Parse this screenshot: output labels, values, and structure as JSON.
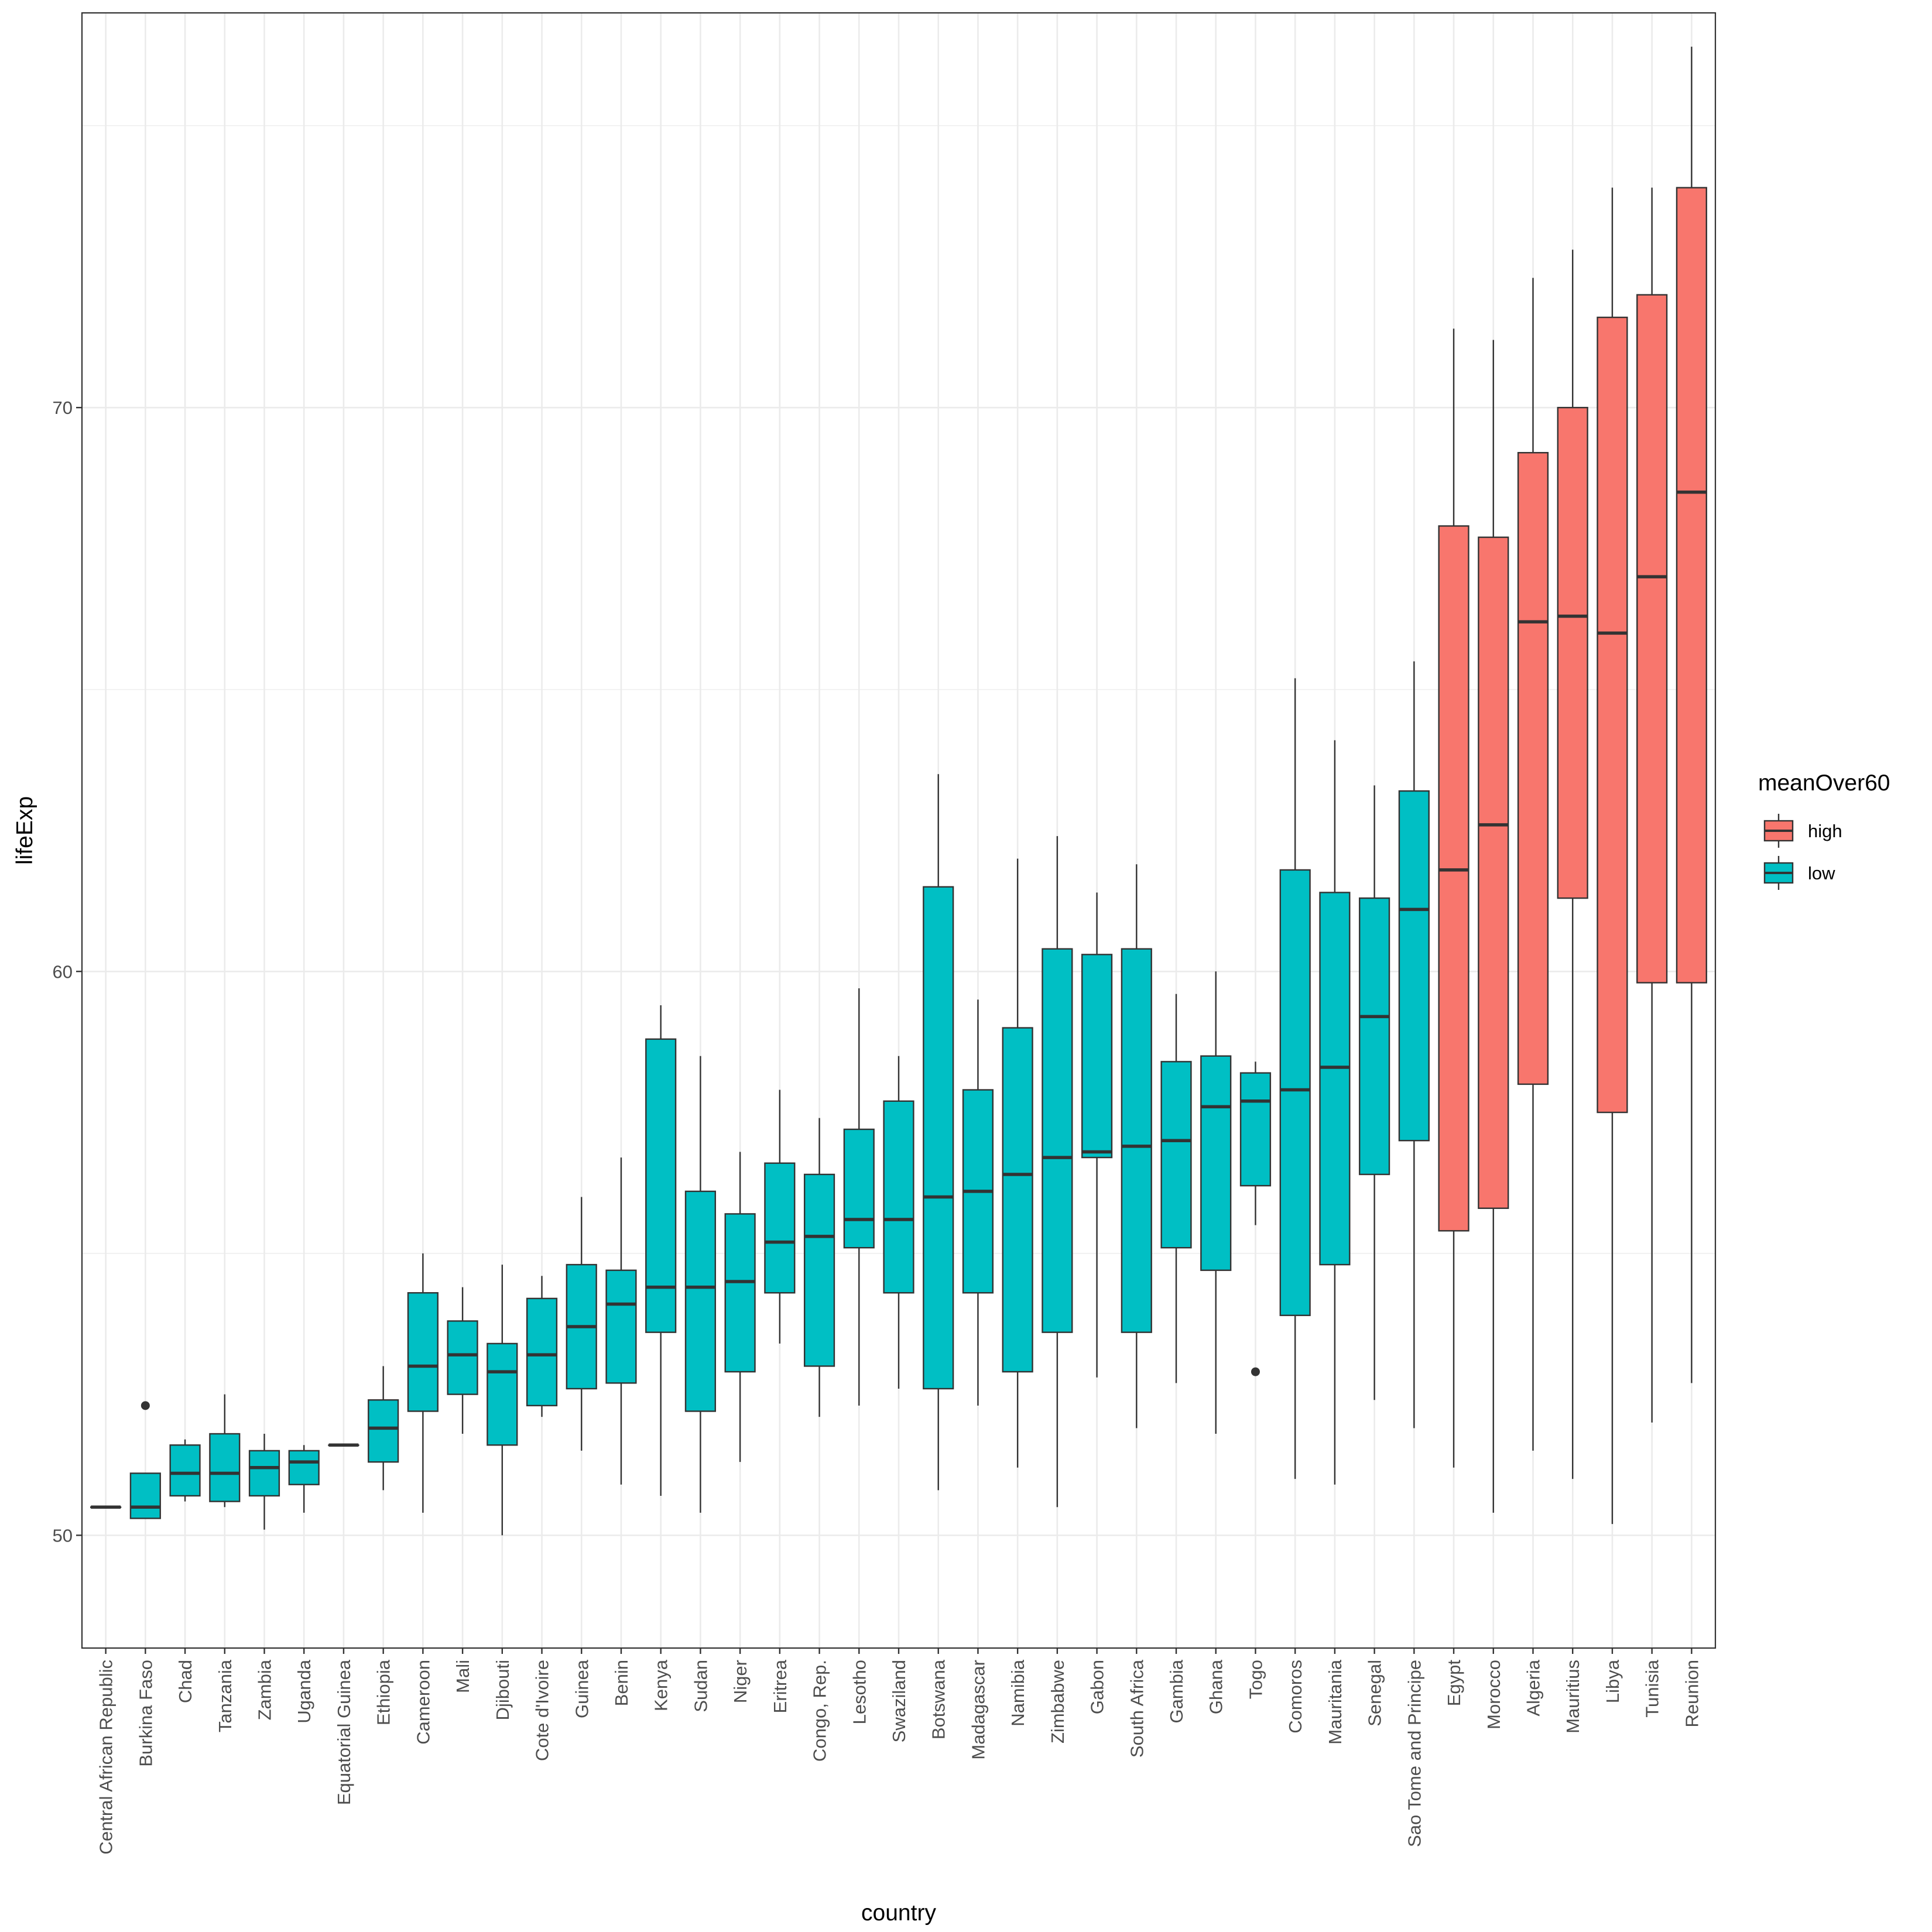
{
  "chart_data": {
    "type": "boxplot",
    "xlabel": "country",
    "ylabel": "lifeExp",
    "ylim": [
      48.0,
      77.0
    ],
    "yticks": [
      50,
      60,
      70
    ],
    "grid": true,
    "legend": {
      "title": "meanOver60",
      "placement": "right",
      "entries": [
        {
          "label": "high",
          "color": "#F8766D"
        },
        {
          "label": "low",
          "color": "#00BFC4"
        }
      ]
    },
    "colors": {
      "high": "#F8766D",
      "low": "#00BFC4",
      "outline": "#333333"
    },
    "boxes": [
      {
        "country": "Central African Republic",
        "group": "low",
        "min": 50.5,
        "q1": 50.5,
        "median": 50.5,
        "q3": 50.5,
        "max": 50.5
      },
      {
        "country": "Burkina Faso",
        "group": "low",
        "min": 50.3,
        "q1": 50.3,
        "median": 50.5,
        "q3": 51.1,
        "max": 51.1,
        "outliers": [
          52.3
        ]
      },
      {
        "country": "Chad",
        "group": "low",
        "min": 50.6,
        "q1": 50.7,
        "median": 51.1,
        "q3": 51.6,
        "max": 51.7
      },
      {
        "country": "Tanzania",
        "group": "low",
        "min": 50.5,
        "q1": 50.6,
        "median": 51.1,
        "q3": 51.8,
        "max": 52.5
      },
      {
        "country": "Zambia",
        "group": "low",
        "min": 50.1,
        "q1": 50.7,
        "median": 51.2,
        "q3": 51.5,
        "max": 51.8
      },
      {
        "country": "Uganda",
        "group": "low",
        "min": 50.4,
        "q1": 50.9,
        "median": 51.3,
        "q3": 51.5,
        "max": 51.6
      },
      {
        "country": "Equatorial Guinea",
        "group": "low",
        "min": 51.6,
        "q1": 51.6,
        "median": 51.6,
        "q3": 51.6,
        "max": 51.6
      },
      {
        "country": "Ethiopia",
        "group": "low",
        "min": 50.8,
        "q1": 51.3,
        "median": 51.9,
        "q3": 52.4,
        "max": 53.0
      },
      {
        "country": "Cameroon",
        "group": "low",
        "min": 50.4,
        "q1": 52.2,
        "median": 53.0,
        "q3": 54.3,
        "max": 55.0
      },
      {
        "country": "Mali",
        "group": "low",
        "min": 51.8,
        "q1": 52.5,
        "median": 53.2,
        "q3": 53.8,
        "max": 54.4
      },
      {
        "country": "Djibouti",
        "group": "low",
        "min": 50.0,
        "q1": 51.6,
        "median": 52.9,
        "q3": 53.4,
        "max": 54.8
      },
      {
        "country": "Cote d'Ivoire",
        "group": "low",
        "min": 52.1,
        "q1": 52.3,
        "median": 53.2,
        "q3": 54.2,
        "max": 54.6
      },
      {
        "country": "Guinea",
        "group": "low",
        "min": 51.5,
        "q1": 52.6,
        "median": 53.7,
        "q3": 54.8,
        "max": 56.0
      },
      {
        "country": "Benin",
        "group": "low",
        "min": 50.9,
        "q1": 52.7,
        "median": 54.1,
        "q3": 54.7,
        "max": 56.7
      },
      {
        "country": "Kenya",
        "group": "low",
        "min": 50.7,
        "q1": 53.6,
        "median": 54.4,
        "q3": 58.8,
        "max": 59.4
      },
      {
        "country": "Sudan",
        "group": "low",
        "min": 50.4,
        "q1": 52.2,
        "median": 54.4,
        "q3": 56.1,
        "max": 58.5
      },
      {
        "country": "Niger",
        "group": "low",
        "min": 51.3,
        "q1": 52.9,
        "median": 54.5,
        "q3": 55.7,
        "max": 56.8
      },
      {
        "country": "Eritrea",
        "group": "low",
        "min": 53.4,
        "q1": 54.3,
        "median": 55.2,
        "q3": 56.6,
        "max": 57.9
      },
      {
        "country": "Congo, Rep.",
        "group": "low",
        "min": 52.1,
        "q1": 53.0,
        "median": 55.3,
        "q3": 56.4,
        "max": 57.4
      },
      {
        "country": "Lesotho",
        "group": "low",
        "min": 52.3,
        "q1": 55.1,
        "median": 55.6,
        "q3": 57.2,
        "max": 59.7
      },
      {
        "country": "Swaziland",
        "group": "low",
        "min": 52.6,
        "q1": 54.3,
        "median": 55.6,
        "q3": 57.7,
        "max": 58.5
      },
      {
        "country": "Botswana",
        "group": "low",
        "min": 50.8,
        "q1": 52.6,
        "median": 56.0,
        "q3": 61.5,
        "max": 63.5
      },
      {
        "country": "Madagascar",
        "group": "low",
        "min": 52.3,
        "q1": 54.3,
        "median": 56.1,
        "q3": 57.9,
        "max": 59.5
      },
      {
        "country": "Namibia",
        "group": "low",
        "min": 51.2,
        "q1": 52.9,
        "median": 56.4,
        "q3": 59.0,
        "max": 62.0
      },
      {
        "country": "Zimbabwe",
        "group": "low",
        "min": 50.5,
        "q1": 53.6,
        "median": 56.7,
        "q3": 60.4,
        "max": 62.4
      },
      {
        "country": "Gabon",
        "group": "low",
        "min": 52.8,
        "q1": 56.7,
        "median": 56.8,
        "q3": 60.3,
        "max": 61.4
      },
      {
        "country": "South Africa",
        "group": "low",
        "min": 51.9,
        "q1": 53.6,
        "median": 56.9,
        "q3": 60.4,
        "max": 61.9
      },
      {
        "country": "Gambia",
        "group": "low",
        "min": 52.7,
        "q1": 55.1,
        "median": 57.0,
        "q3": 58.4,
        "max": 59.6
      },
      {
        "country": "Ghana",
        "group": "low",
        "min": 51.8,
        "q1": 54.7,
        "median": 57.6,
        "q3": 58.5,
        "max": 60.0
      },
      {
        "country": "Togo",
        "group": "low",
        "min": 55.5,
        "q1": 56.2,
        "median": 57.7,
        "q3": 58.2,
        "max": 58.4,
        "outliers": [
          52.9
        ]
      },
      {
        "country": "Comoros",
        "group": "low",
        "min": 51.0,
        "q1": 53.9,
        "median": 57.9,
        "q3": 61.8,
        "max": 65.2
      },
      {
        "country": "Mauritania",
        "group": "low",
        "min": 50.9,
        "q1": 54.8,
        "median": 58.3,
        "q3": 61.4,
        "max": 64.1
      },
      {
        "country": "Senegal",
        "group": "low",
        "min": 52.4,
        "q1": 56.4,
        "median": 59.2,
        "q3": 61.3,
        "max": 63.3
      },
      {
        "country": "Sao Tome and Principe",
        "group": "low",
        "min": 51.9,
        "q1": 57.0,
        "median": 61.1,
        "q3": 63.2,
        "max": 65.5
      },
      {
        "country": "Egypt",
        "group": "high",
        "min": 51.2,
        "q1": 55.4,
        "median": 61.8,
        "q3": 67.9,
        "max": 71.4
      },
      {
        "country": "Morocco",
        "group": "high",
        "min": 50.4,
        "q1": 55.8,
        "median": 62.6,
        "q3": 67.7,
        "max": 71.2
      },
      {
        "country": "Algeria",
        "group": "high",
        "min": 51.5,
        "q1": 58.0,
        "median": 66.2,
        "q3": 69.2,
        "max": 72.3
      },
      {
        "country": "Mauritius",
        "group": "high",
        "min": 51.0,
        "q1": 61.3,
        "median": 66.3,
        "q3": 70.0,
        "max": 72.8
      },
      {
        "country": "Libya",
        "group": "high",
        "min": 50.2,
        "q1": 57.5,
        "median": 66.0,
        "q3": 71.6,
        "max": 73.9
      },
      {
        "country": "Tunisia",
        "group": "high",
        "min": 52.0,
        "q1": 59.8,
        "median": 67.0,
        "q3": 72.0,
        "max": 73.9
      },
      {
        "country": "Reunion",
        "group": "high",
        "min": 52.7,
        "q1": 59.8,
        "median": 68.5,
        "q3": 73.9,
        "max": 76.4
      }
    ]
  }
}
